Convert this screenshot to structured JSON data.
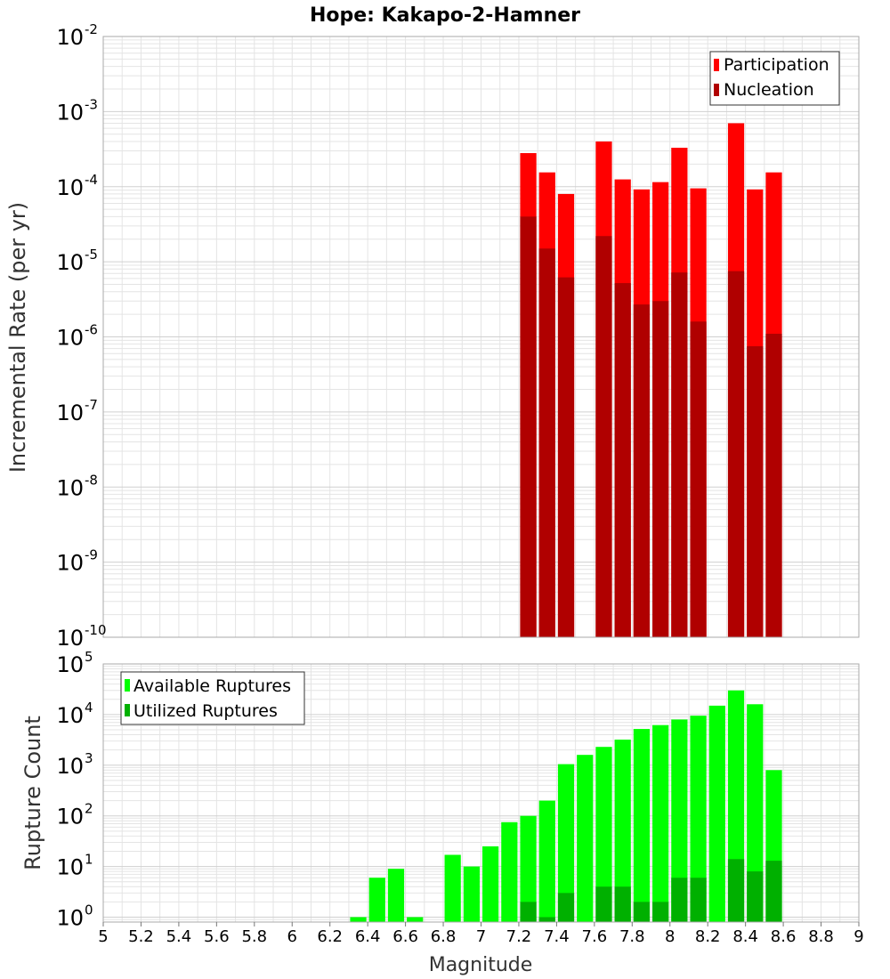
{
  "title": "Hope: Kakapo-2-Hamner",
  "colors": {
    "participation": "#ff0000",
    "nucleation": "#b00000",
    "available": "#00ff00",
    "utilized": "#00b000",
    "grid": "#e4e4e4",
    "frame": "#aaaaaa"
  },
  "chart_data": [
    {
      "type": "bar",
      "ylabel": "Incremental Rate (per yr)",
      "yscale": "log",
      "ylim": [
        1e-10,
        0.01
      ],
      "xlim": [
        5,
        9
      ],
      "grid": true,
      "legend_position": "top-right",
      "x": [
        7.25,
        7.35,
        7.45,
        7.65,
        7.75,
        7.85,
        7.95,
        8.05,
        8.15,
        8.35,
        8.45,
        8.55
      ],
      "series": [
        {
          "name": "Participation",
          "color": "#ff0000",
          "values": [
            0.00028,
            0.000155,
            8e-05,
            0.0004,
            0.000125,
            9.2e-05,
            0.000115,
            0.00033,
            9.5e-05,
            0.0007,
            9.2e-05,
            0.000155
          ]
        },
        {
          "name": "Nucleation",
          "color": "#b00000",
          "values": [
            4e-05,
            1.5e-05,
            6.2e-06,
            2.2e-05,
            5.2e-06,
            2.7e-06,
            3e-06,
            7.2e-06,
            1.6e-06,
            7.5e-06,
            7.5e-07,
            1.1e-06
          ]
        }
      ]
    },
    {
      "type": "bar",
      "xlabel": "Magnitude",
      "ylabel": "Rupture Count",
      "yscale": "log",
      "ylim": [
        0.8,
        100000
      ],
      "xlim": [
        5,
        9
      ],
      "grid": true,
      "legend_position": "top-left",
      "x": [
        6.35,
        6.45,
        6.55,
        6.65,
        6.85,
        6.95,
        7.05,
        7.15,
        7.25,
        7.35,
        7.45,
        7.55,
        7.65,
        7.75,
        7.85,
        7.95,
        8.05,
        8.15,
        8.25,
        8.35,
        8.45,
        8.55
      ],
      "series": [
        {
          "name": "Available Ruptures",
          "color": "#00ff00",
          "values": [
            1,
            6,
            9,
            1,
            17,
            10,
            25,
            75,
            100,
            200,
            1050,
            1600,
            2300,
            3200,
            5200,
            6200,
            8000,
            9500,
            15000,
            30000,
            16000,
            800
          ]
        },
        {
          "name": "Utilized Ruptures",
          "color": "#00b000",
          "values": [
            0,
            0,
            0,
            0,
            0,
            0,
            0,
            0,
            2,
            1,
            3,
            0,
            4,
            4,
            2,
            2,
            6,
            6,
            0,
            14,
            8,
            13
          ]
        }
      ]
    }
  ],
  "x_ticks": [
    "5",
    "5.2",
    "5.4",
    "5.6",
    "5.8",
    "6",
    "6.2",
    "6.4",
    "6.6",
    "6.8",
    "7",
    "7.2",
    "7.4",
    "7.6",
    "7.8",
    "8",
    "8.2",
    "8.4",
    "8.6",
    "8.8",
    "9"
  ],
  "top_y_ticks": [
    {
      "base": "10",
      "exp": "-2"
    },
    {
      "base": "10",
      "exp": "-3"
    },
    {
      "base": "10",
      "exp": "-4"
    },
    {
      "base": "10",
      "exp": "-5"
    },
    {
      "base": "10",
      "exp": "-6"
    },
    {
      "base": "10",
      "exp": "-7"
    },
    {
      "base": "10",
      "exp": "-8"
    },
    {
      "base": "10",
      "exp": "-9"
    },
    {
      "base": "10",
      "exp": "-10"
    }
  ],
  "bottom_y_ticks": [
    {
      "base": "10",
      "exp": "5"
    },
    {
      "base": "10",
      "exp": "4"
    },
    {
      "base": "10",
      "exp": "3"
    },
    {
      "base": "10",
      "exp": "2"
    },
    {
      "base": "10",
      "exp": "1"
    },
    {
      "base": "10",
      "exp": "0"
    }
  ]
}
